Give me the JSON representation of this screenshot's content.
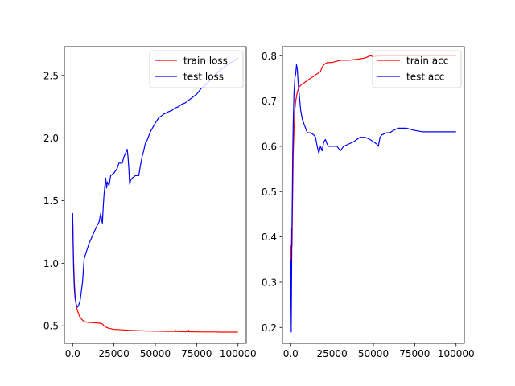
{
  "chart_data": [
    {
      "type": "line",
      "title": "",
      "xlabel": "",
      "ylabel": "",
      "xlim": [
        -5000,
        105000
      ],
      "ylim": [
        0.36,
        2.73
      ],
      "xticks": [
        0,
        25000,
        50000,
        75000,
        100000
      ],
      "yticks": [
        0.5,
        1.0,
        1.5,
        2.0,
        2.5
      ],
      "grid": false,
      "legend": "top-right",
      "series": [
        {
          "name": "train loss",
          "color": "#ff0000",
          "x": [
            0,
            500,
            1000,
            1500,
            2000,
            2500,
            3000,
            3500,
            4000,
            5000,
            6000,
            7000,
            8000,
            10000,
            12000,
            15000,
            17000,
            18000,
            19000,
            20000,
            22000,
            25000,
            30000,
            35000,
            40000,
            45000,
            50000,
            55000,
            60000,
            62000,
            62200,
            62400,
            65000,
            70000,
            70100,
            70300,
            75000,
            80000,
            85000,
            90000,
            95000,
            100000
          ],
          "y": [
            1.4,
            1.05,
            0.86,
            0.74,
            0.68,
            0.64,
            0.62,
            0.6,
            0.58,
            0.56,
            0.545,
            0.535,
            0.53,
            0.527,
            0.525,
            0.522,
            0.52,
            0.515,
            0.5,
            0.49,
            0.48,
            0.472,
            0.468,
            0.464,
            0.461,
            0.459,
            0.458,
            0.456,
            0.455,
            0.455,
            0.465,
            0.455,
            0.454,
            0.453,
            0.465,
            0.453,
            0.452,
            0.451,
            0.451,
            0.45,
            0.45,
            0.45
          ]
        },
        {
          "name": "test loss",
          "color": "#0000ff",
          "x": [
            0,
            300,
            600,
            1000,
            1500,
            2000,
            2500,
            3000,
            3500,
            4000,
            4500,
            5000,
            5500,
            6000,
            6500,
            7000,
            7500,
            8000,
            9000,
            10000,
            12000,
            14000,
            16000,
            17000,
            17500,
            18000,
            18500,
            19000,
            19500,
            20000,
            20500,
            21000,
            22000,
            23000,
            25000,
            27000,
            28000,
            30000,
            31000,
            32000,
            33000,
            33500,
            34000,
            34500,
            35000,
            36000,
            38000,
            40000,
            41000,
            42000,
            43000,
            44000,
            45000,
            47000,
            50000,
            52000,
            55000,
            58000,
            60000,
            62000,
            64000,
            66000,
            68000,
            70000,
            72000,
            75000,
            78000,
            80000,
            83000,
            86000,
            89000,
            92000,
            95000,
            98000,
            100000
          ],
          "y": [
            1.4,
            1.15,
            0.95,
            0.8,
            0.72,
            0.68,
            0.66,
            0.65,
            0.66,
            0.68,
            0.7,
            0.75,
            0.8,
            0.85,
            0.95,
            1.04,
            1.06,
            1.08,
            1.12,
            1.16,
            1.22,
            1.28,
            1.33,
            1.4,
            1.35,
            1.32,
            1.45,
            1.55,
            1.62,
            1.68,
            1.6,
            1.65,
            1.62,
            1.7,
            1.72,
            1.76,
            1.8,
            1.8,
            1.85,
            1.88,
            1.91,
            1.85,
            1.75,
            1.63,
            1.66,
            1.68,
            1.7,
            1.7,
            1.78,
            1.85,
            1.9,
            1.96,
            1.98,
            2.05,
            2.12,
            2.16,
            2.19,
            2.21,
            2.22,
            2.24,
            2.25,
            2.27,
            2.28,
            2.3,
            2.32,
            2.35,
            2.4,
            2.42,
            2.46,
            2.5,
            2.54,
            2.57,
            2.6,
            2.62,
            2.64
          ]
        }
      ]
    },
    {
      "type": "line",
      "title": "",
      "xlabel": "",
      "ylabel": "",
      "xlim": [
        -5000,
        105000
      ],
      "ylim": [
        0.165,
        0.82
      ],
      "xticks": [
        0,
        25000,
        50000,
        75000,
        100000
      ],
      "yticks": [
        0.2,
        0.3,
        0.4,
        0.5,
        0.6,
        0.7,
        0.8
      ],
      "grid": false,
      "legend": "top-right",
      "series": [
        {
          "name": "train acc",
          "color": "#ff0000",
          "x": [
            0,
            200,
            400,
            600,
            800,
            1000,
            1200,
            1500,
            2000,
            2500,
            3000,
            4000,
            5000,
            6000,
            8000,
            10000,
            12000,
            14000,
            16000,
            18000,
            19000,
            20000,
            22000,
            25000,
            30000,
            35000,
            40000,
            45000,
            48000,
            50000,
            55000,
            60000,
            65000,
            70000,
            75000,
            80000,
            85000,
            90000,
            95000,
            100000
          ],
          "y": [
            0.3,
            0.38,
            0.35,
            0.42,
            0.38,
            0.45,
            0.5,
            0.58,
            0.64,
            0.68,
            0.7,
            0.72,
            0.73,
            0.735,
            0.74,
            0.745,
            0.75,
            0.755,
            0.76,
            0.765,
            0.775,
            0.78,
            0.785,
            0.785,
            0.79,
            0.79,
            0.792,
            0.795,
            0.8,
            0.798,
            0.8,
            0.8,
            0.8,
            0.8,
            0.8,
            0.8,
            0.8,
            0.8,
            0.8,
            0.8
          ]
        },
        {
          "name": "test acc",
          "color": "#0000ff",
          "x": [
            0,
            300,
            500,
            700,
            1000,
            1200,
            1500,
            2000,
            2500,
            3000,
            3500,
            4000,
            4500,
            5000,
            5500,
            6000,
            7000,
            8000,
            9000,
            10000,
            12000,
            14000,
            15000,
            16000,
            17000,
            18000,
            19000,
            20000,
            21000,
            22000,
            23000,
            25000,
            28000,
            30000,
            32000,
            35000,
            38000,
            40000,
            42000,
            45000,
            48000,
            50000,
            52000,
            53000,
            54000,
            55000,
            58000,
            60000,
            62000,
            65000,
            70000,
            75000,
            80000,
            85000,
            90000,
            95000,
            100000
          ],
          "y": [
            0.35,
            0.19,
            0.3,
            0.4,
            0.5,
            0.58,
            0.65,
            0.72,
            0.75,
            0.76,
            0.78,
            0.77,
            0.74,
            0.72,
            0.7,
            0.68,
            0.66,
            0.65,
            0.64,
            0.63,
            0.63,
            0.625,
            0.62,
            0.6,
            0.585,
            0.6,
            0.59,
            0.61,
            0.615,
            0.605,
            0.6,
            0.6,
            0.6,
            0.59,
            0.6,
            0.605,
            0.61,
            0.615,
            0.62,
            0.62,
            0.615,
            0.61,
            0.605,
            0.6,
            0.62,
            0.625,
            0.63,
            0.63,
            0.635,
            0.64,
            0.64,
            0.635,
            0.632,
            0.632,
            0.632,
            0.632,
            0.632
          ]
        }
      ]
    }
  ]
}
